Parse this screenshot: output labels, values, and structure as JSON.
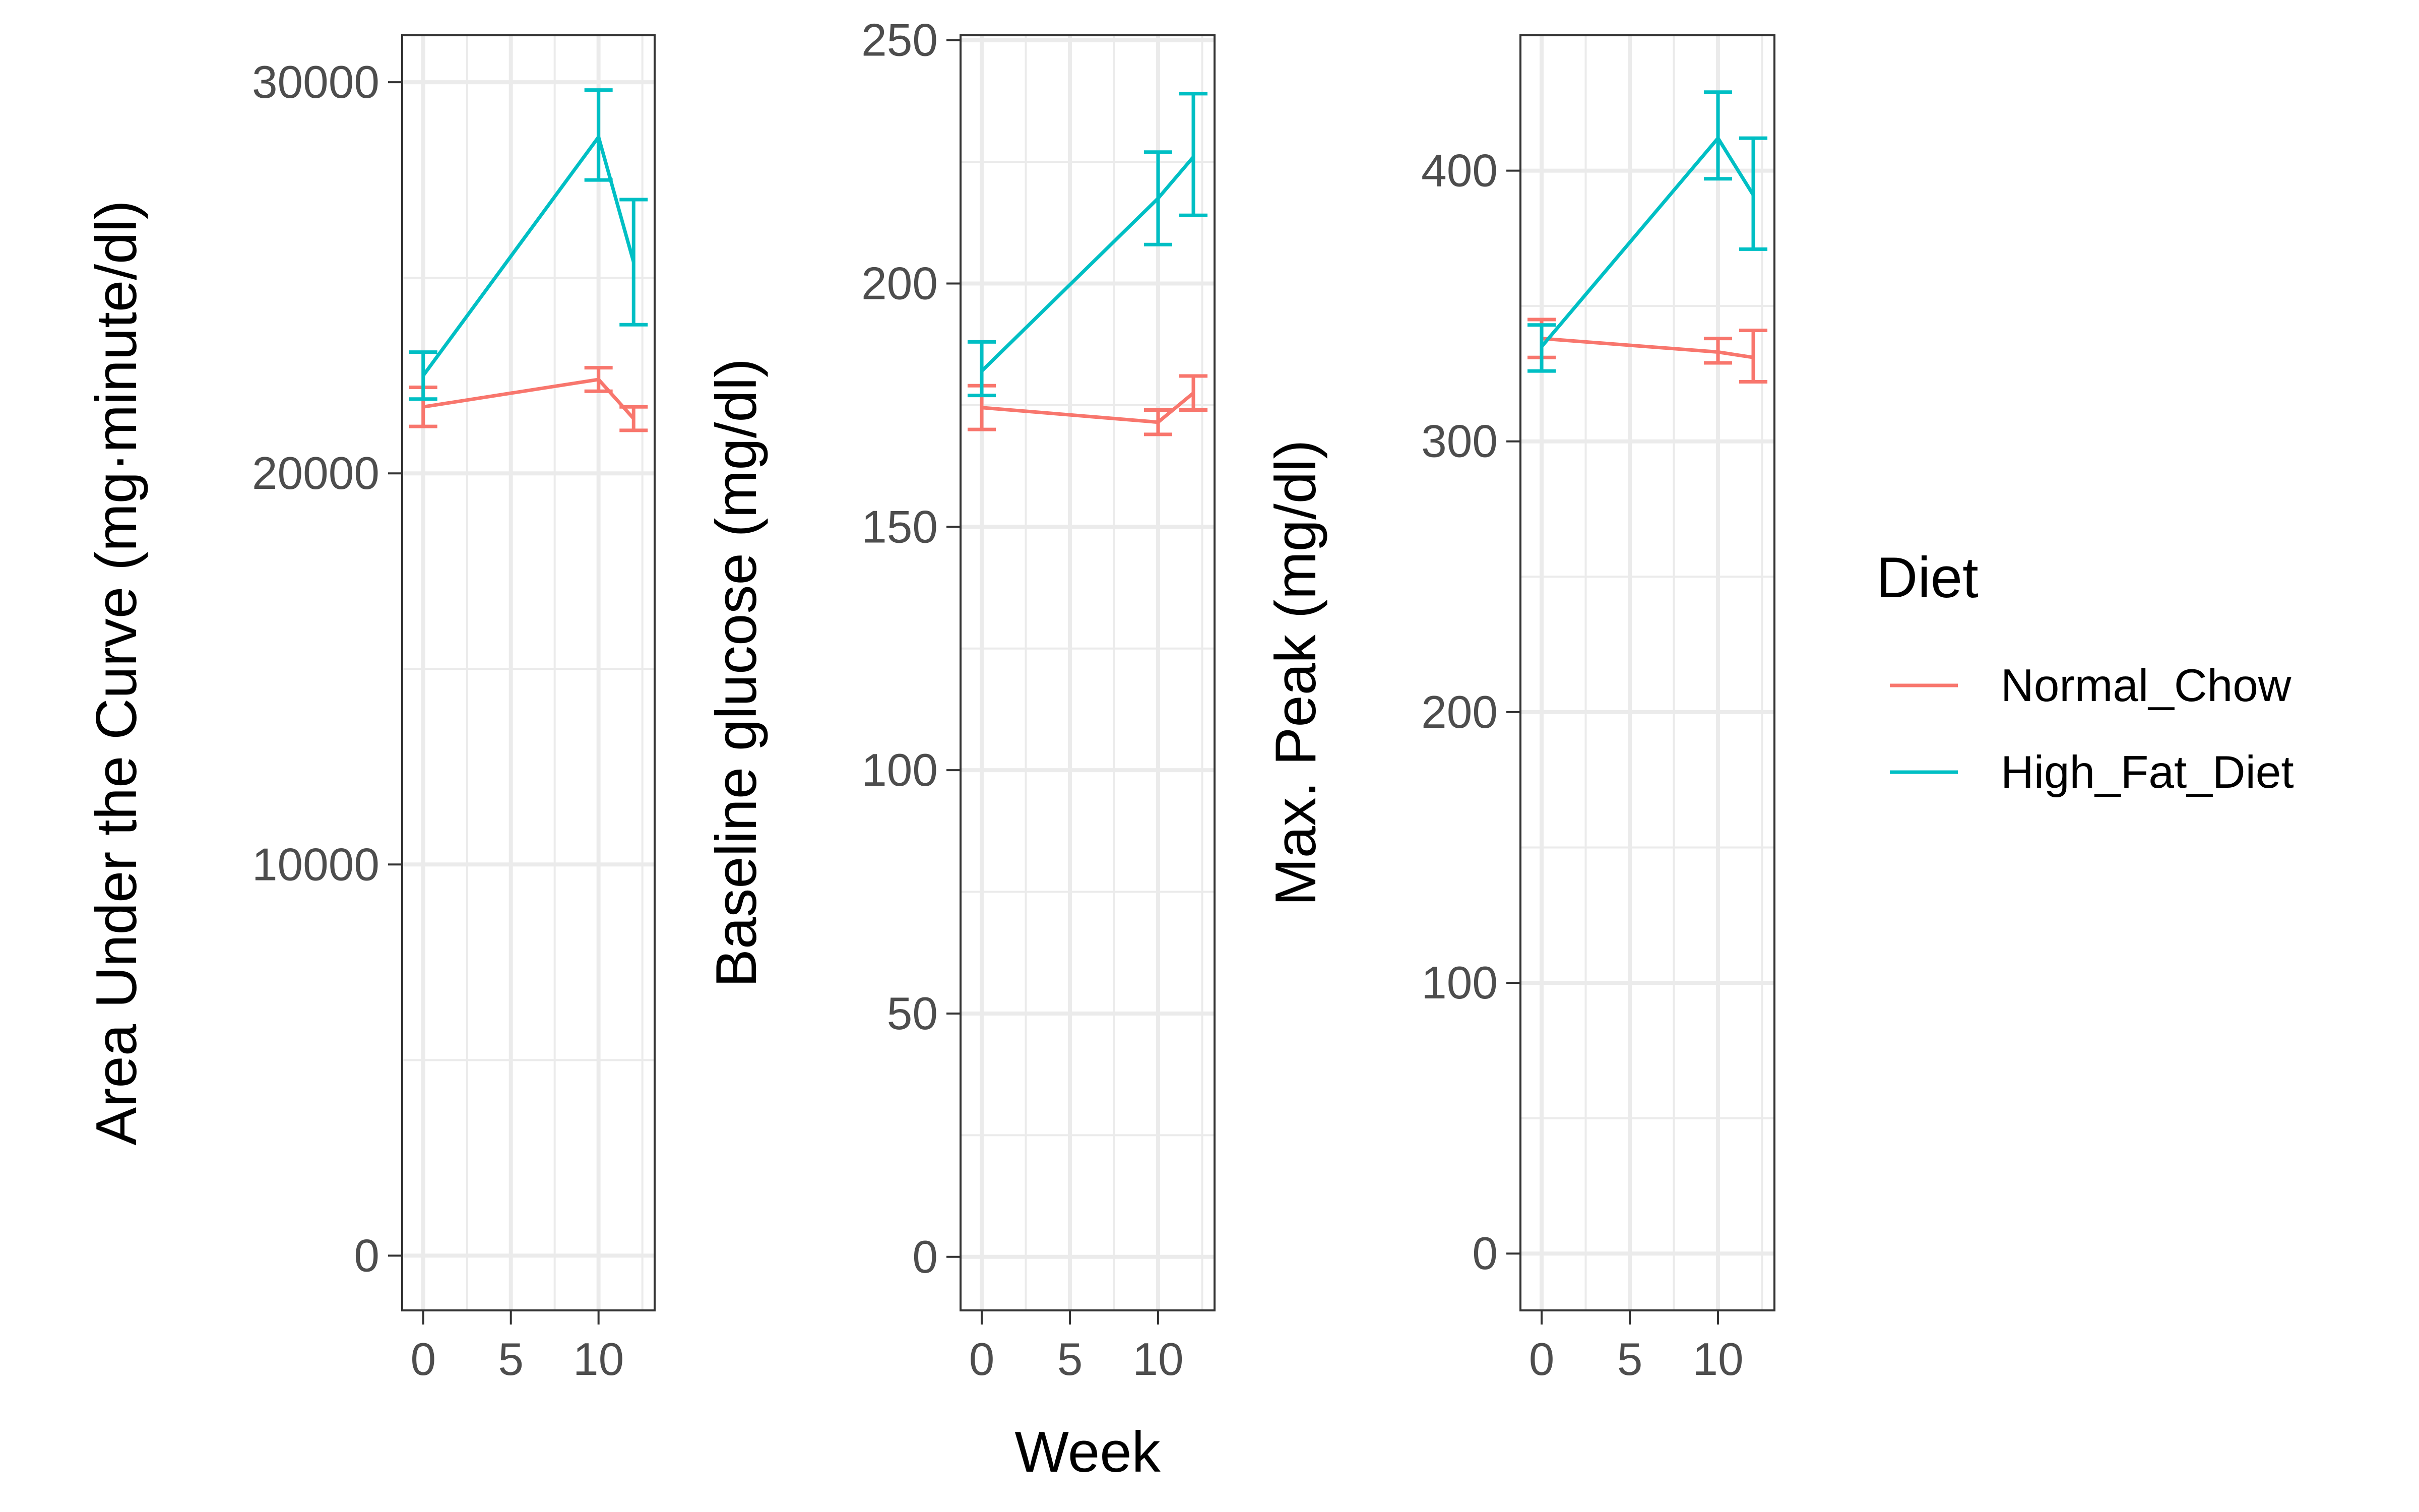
{
  "chart_data": [
    {
      "type": "line",
      "ylabel": "Area Under the Curve (mg·minute/dl)",
      "xlabel": "",
      "x_ticks": [
        "0",
        "5",
        "10"
      ],
      "y_ticks": [
        "0",
        "10000",
        "20000",
        "30000"
      ],
      "xlim": [
        -1.2,
        13.2
      ],
      "ylim": [
        -1400,
        31200
      ],
      "grid": true,
      "series": [
        {
          "name": "Normal_Chow",
          "x": [
            0,
            10,
            12
          ],
          "y": [
            21700,
            22400,
            21400
          ],
          "error": [
            [
              21200,
              22200
            ],
            [
              22100,
              22700
            ],
            [
              21100,
              21700
            ]
          ]
        },
        {
          "name": "High_Fat_Diet",
          "x": [
            0,
            10,
            12
          ],
          "y": [
            22500,
            28600,
            25400
          ],
          "error": [
            [
              21900,
              23100
            ],
            [
              27500,
              29800
            ],
            [
              23800,
              27000
            ]
          ]
        }
      ]
    },
    {
      "type": "line",
      "ylabel": "Baseline glucose (mg/dl)",
      "xlabel": "Week",
      "x_ticks": [
        "0",
        "5",
        "10"
      ],
      "y_ticks": [
        "0",
        "50",
        "100",
        "150",
        "200",
        "250"
      ],
      "xlim": [
        -1.2,
        13.2
      ],
      "ylim": [
        -11,
        251
      ],
      "grid": true,
      "series": [
        {
          "name": "Normal_Chow",
          "x": [
            0,
            10,
            12
          ],
          "y": [
            174.5,
            171.5,
            177.5
          ],
          "error": [
            [
              170,
              179
            ],
            [
              169,
              174
            ],
            [
              174,
              181
            ]
          ]
        },
        {
          "name": "High_Fat_Diet",
          "x": [
            0,
            10,
            12
          ],
          "y": [
            182,
            217.5,
            226
          ],
          "error": [
            [
              177,
              188
            ],
            [
              208,
              227
            ],
            [
              214,
              239
            ]
          ]
        }
      ]
    },
    {
      "type": "line",
      "ylabel": "Max. Peak (mg/dl)",
      "xlabel": "",
      "x_ticks": [
        "0",
        "5",
        "10"
      ],
      "y_ticks": [
        "0",
        "100",
        "200",
        "300",
        "400"
      ],
      "xlim": [
        -1.2,
        13.2
      ],
      "ylim": [
        -21,
        450
      ],
      "grid": true,
      "series": [
        {
          "name": "Normal_Chow",
          "x": [
            0,
            10,
            12
          ],
          "y": [
            338,
            333,
            331
          ],
          "error": [
            [
              331,
              345
            ],
            [
              329,
              338
            ],
            [
              322,
              341
            ]
          ]
        },
        {
          "name": "High_Fat_Diet",
          "x": [
            0,
            10,
            12
          ],
          "y": [
            335,
            412,
            391
          ],
          "error": [
            [
              326,
              343
            ],
            [
              397,
              429
            ],
            [
              371,
              412
            ]
          ]
        }
      ]
    }
  ],
  "legend": {
    "title": "Diet",
    "items": [
      {
        "label": "Normal_Chow",
        "color": "#F8766D"
      },
      {
        "label": "High_Fat_Diet",
        "color": "#00BFC4"
      }
    ]
  },
  "colors": {
    "Normal_Chow": "#F8766D",
    "High_Fat_Diet": "#00BFC4"
  }
}
